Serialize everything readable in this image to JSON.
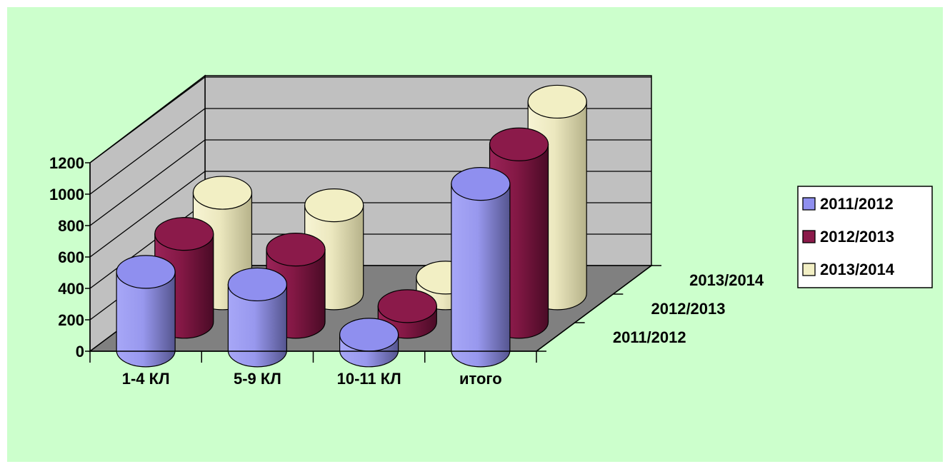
{
  "chart_data": {
    "type": "bar",
    "style": "3d-cylinder",
    "title": "",
    "categories": [
      "1-4 КЛ",
      "5-9 КЛ",
      "10-11 КЛ",
      "итого"
    ],
    "series": [
      {
        "name": "2011/2012",
        "values": [
          500,
          420,
          100,
          1060
        ],
        "color": "#8f8fef"
      },
      {
        "name": "2012/2013",
        "values": [
          560,
          460,
          100,
          1130
        ],
        "color": "#8b1a4a"
      },
      {
        "name": "2013/2014",
        "values": [
          640,
          560,
          100,
          1220
        ],
        "color": "#f2efc4"
      }
    ],
    "ylim": [
      0,
      1200
    ],
    "y_ticks": [
      "0",
      "200",
      "400",
      "600",
      "800",
      "1000",
      "1200"
    ],
    "depth_labels": [
      "2011/2012",
      "2012/2013",
      "2013/2014"
    ],
    "legend_position": "right",
    "grid": true
  },
  "colors": {
    "background": "#ccffcc",
    "walls": "#c0c0c0",
    "floor": "#808080"
  }
}
